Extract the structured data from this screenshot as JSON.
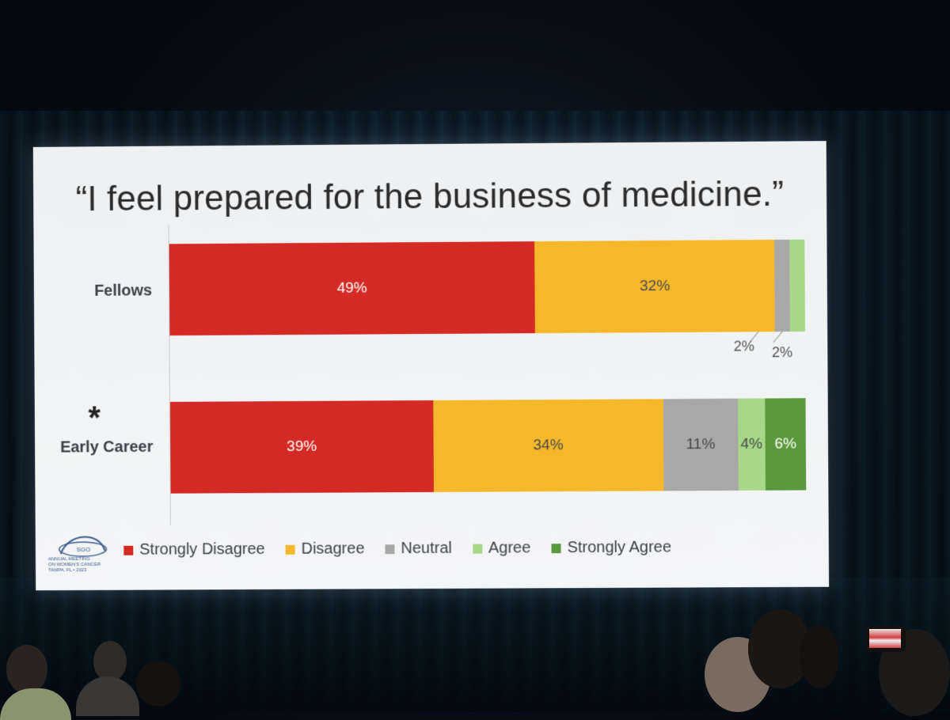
{
  "chart_data": {
    "type": "bar",
    "orientation": "horizontal-stacked-100",
    "title": "“I feel prepared for the business of medicine.”",
    "categories": [
      "Fellows",
      "Early Career"
    ],
    "category_marks": {
      "Early Career": "*"
    },
    "series": [
      {
        "name": "Strongly Disagree",
        "color": "#d42a25",
        "values": [
          49,
          39
        ],
        "labels": [
          "49%",
          "39%"
        ]
      },
      {
        "name": "Disagree",
        "color": "#f6b82b",
        "values": [
          32,
          34
        ],
        "labels": [
          "32%",
          "34%"
        ]
      },
      {
        "name": "Neutral",
        "color": "#a8a8a8",
        "values": [
          2,
          11
        ],
        "labels": [
          "2%",
          "11%"
        ]
      },
      {
        "name": "Agree",
        "color": "#a7d88a",
        "values": [
          2,
          4
        ],
        "labels": [
          "2%",
          "4%"
        ]
      },
      {
        "name": "Strongly Agree",
        "color": "#5b9a3c",
        "values": [
          0,
          6
        ],
        "labels": [
          "",
          "6%"
        ]
      }
    ],
    "legend_position": "bottom",
    "grid": false
  },
  "logo": {
    "name": "SGO",
    "text": [
      "ANNUAL MEETING",
      "ON WOMEN'S CANCER",
      "TAMPA, FL • 2023"
    ]
  }
}
